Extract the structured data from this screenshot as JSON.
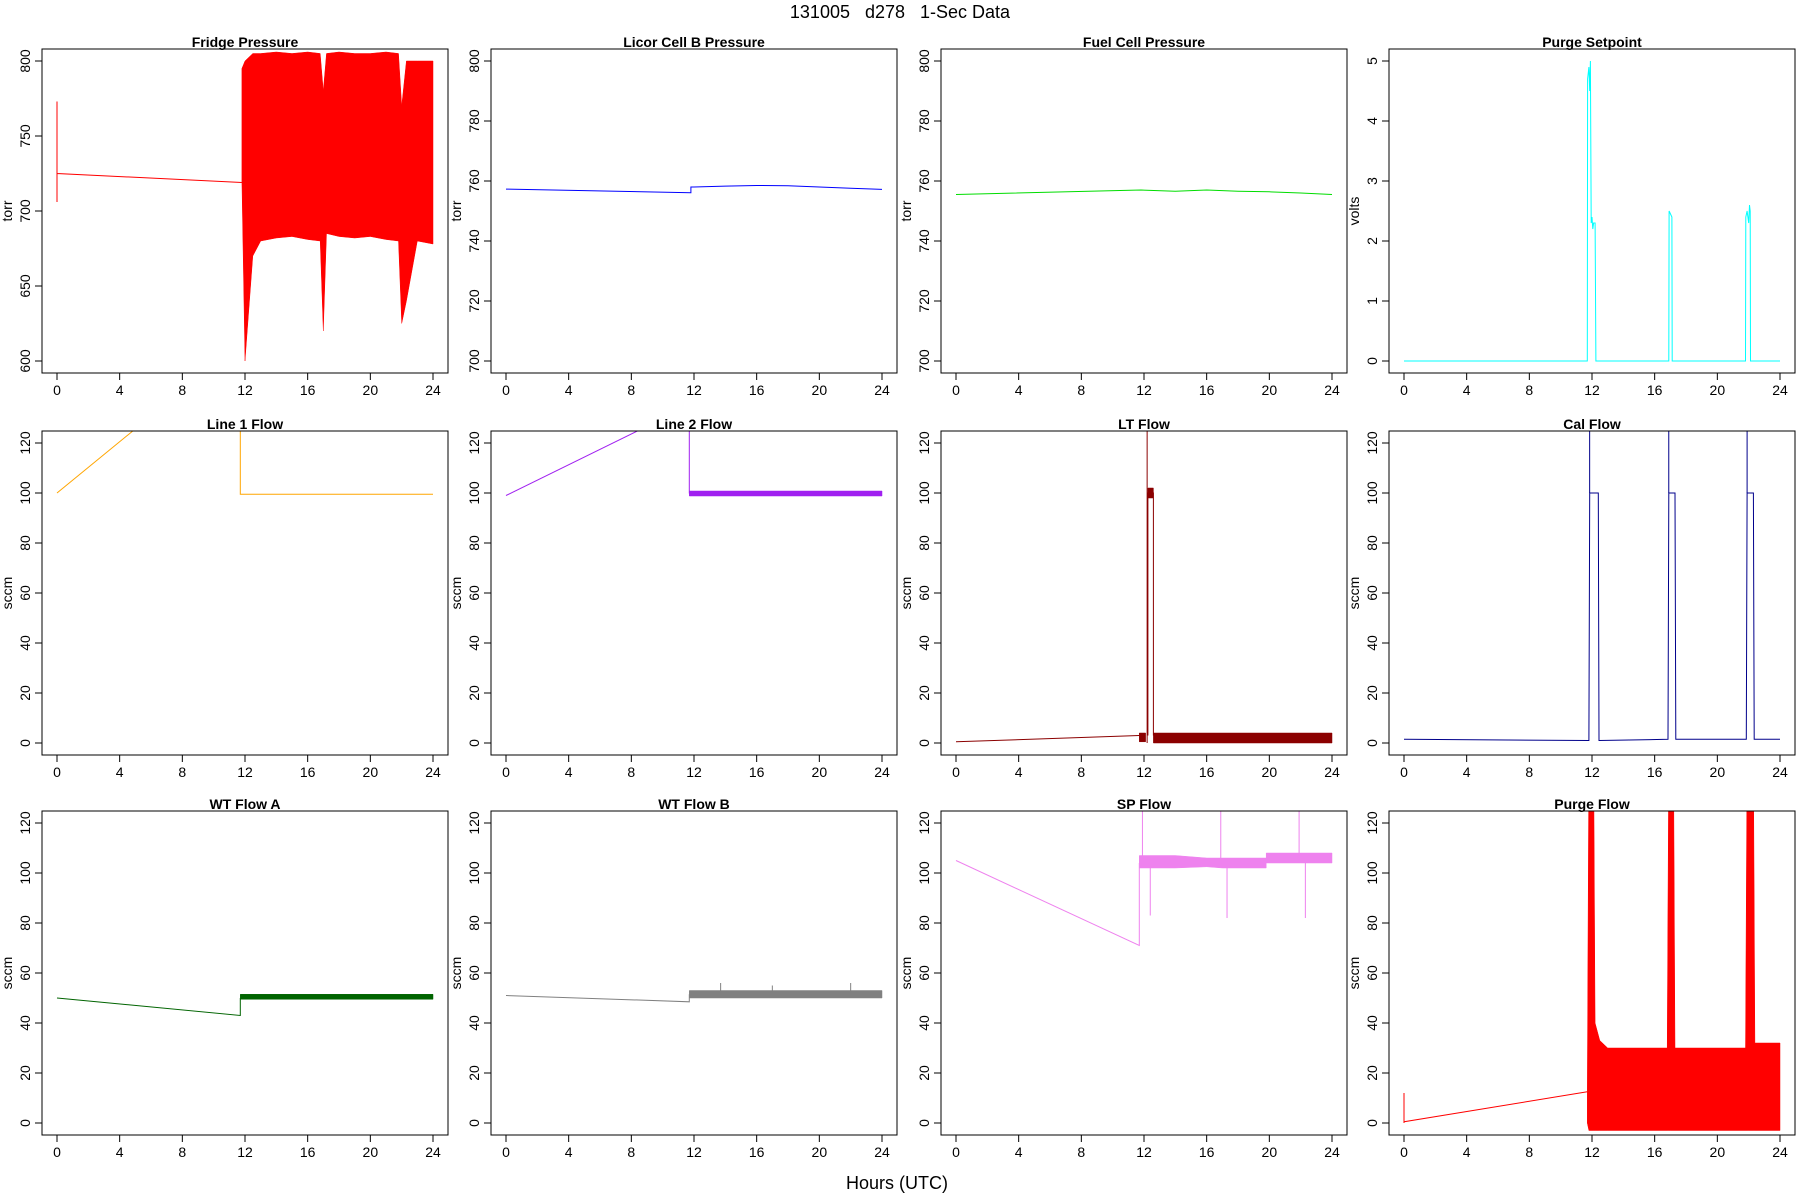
{
  "figure": {
    "title": "131005   d278   1-Sec Data",
    "xlabel": "Hours (UTC)"
  },
  "chart_data": [
    {
      "type": "line",
      "title": "Fridge Pressure",
      "ylabel": "torr",
      "color": "#ff0000",
      "xlim": [
        0,
        24
      ],
      "ylim": [
        600,
        800
      ],
      "xticks": [
        0,
        4,
        8,
        12,
        16,
        20,
        24
      ],
      "yticks": [
        600,
        650,
        700,
        750,
        800
      ],
      "lines": [
        {
          "x": [
            0,
            0,
            0,
            11.8
          ],
          "y": [
            706,
            773,
            725,
            719
          ]
        }
      ],
      "bands": [
        {
          "x": [
            11.8,
            12.0,
            12.5,
            13,
            14,
            15,
            16,
            16.8,
            17.0,
            17.2,
            18,
            19,
            20,
            21,
            21.8,
            22.0,
            22.3,
            23,
            24
          ],
          "lo": [
            720,
            600,
            670,
            680,
            682,
            683,
            681,
            680,
            620,
            685,
            683,
            682,
            683,
            681,
            680,
            625,
            640,
            680,
            678
          ],
          "hi": [
            795,
            800,
            805,
            805,
            806,
            805,
            806,
            805,
            780,
            805,
            806,
            805,
            805,
            806,
            805,
            770,
            800,
            800,
            800
          ]
        }
      ],
      "spikes": []
    },
    {
      "type": "line",
      "title": "Licor Cell B Pressure",
      "ylabel": "torr",
      "color": "#0000ff",
      "xlim": [
        0,
        24
      ],
      "ylim": [
        700,
        800
      ],
      "xticks": [
        0,
        4,
        8,
        12,
        16,
        20,
        24
      ],
      "yticks": [
        700,
        720,
        740,
        760,
        780,
        800
      ],
      "lines": [
        {
          "x": [
            0,
            11.8,
            11.8,
            12,
            14,
            16,
            18,
            20,
            22,
            24
          ],
          "y": [
            757.3,
            756.1,
            758,
            758,
            758.3,
            758.5,
            758.4,
            758,
            757.6,
            757.2
          ]
        }
      ],
      "bands": [],
      "spikes": []
    },
    {
      "type": "line",
      "title": "Fuel Cell Pressure",
      "ylabel": "torr",
      "color": "#00dd00",
      "xlim": [
        0,
        24
      ],
      "ylim": [
        700,
        800
      ],
      "xticks": [
        0,
        4,
        8,
        12,
        16,
        20,
        24
      ],
      "yticks": [
        700,
        720,
        740,
        760,
        780,
        800
      ],
      "lines": [
        {
          "x": [
            0,
            11.8,
            14,
            16,
            18,
            20,
            22,
            24
          ],
          "y": [
            755.5,
            757,
            756.6,
            757,
            756.6,
            756.4,
            756,
            755.5
          ]
        }
      ],
      "bands": [],
      "spikes": []
    },
    {
      "type": "line",
      "title": "Purge Setpoint",
      "ylabel": "volts",
      "color": "#00ffff",
      "xlim": [
        0,
        24
      ],
      "ylim": [
        0,
        5
      ],
      "xticks": [
        0,
        4,
        8,
        12,
        16,
        20,
        24
      ],
      "yticks": [
        0,
        1,
        2,
        3,
        4,
        5
      ],
      "lines": [
        {
          "x": [
            0,
            11.7,
            11.72,
            11.8,
            11.85,
            11.9,
            11.95,
            12.0,
            12.05,
            12.1,
            12.2,
            12.25,
            16.9,
            16.92,
            17.1,
            17.12,
            21.8,
            21.82,
            21.9,
            22.0,
            22.05,
            22.1,
            22.12,
            24
          ],
          "y": [
            0,
            0,
            4.7,
            4.9,
            4.5,
            5.0,
            2.3,
            2.4,
            2.2,
            2.3,
            2.3,
            0,
            0,
            2.5,
            2.4,
            0,
            0,
            2.4,
            2.5,
            2.3,
            2.6,
            2.5,
            0,
            0
          ]
        }
      ],
      "bands": [],
      "spikes": []
    },
    {
      "type": "line",
      "title": "Line 1 Flow",
      "ylabel": "sccm",
      "color": "#ffa500",
      "xlim": [
        0,
        24
      ],
      "ylim": [
        0,
        120
      ],
      "xticks": [
        0,
        4,
        8,
        12,
        16,
        20,
        24
      ],
      "yticks": [
        0,
        20,
        40,
        60,
        80,
        100,
        120
      ],
      "lines": [
        {
          "x": [
            0,
            11.7
          ],
          "y": [
            100,
            160
          ]
        },
        {
          "x": [
            11.7,
            11.7,
            24
          ],
          "y": [
            140,
            99.5,
            99.5
          ]
        }
      ],
      "bands": [],
      "spikes": []
    },
    {
      "type": "line",
      "title": "Line 2 Flow",
      "ylabel": "sccm",
      "color": "#a020f0",
      "xlim": [
        0,
        24
      ],
      "ylim": [
        0,
        120
      ],
      "xticks": [
        0,
        4,
        8,
        12,
        16,
        20,
        24
      ],
      "yticks": [
        0,
        20,
        40,
        60,
        80,
        100,
        120
      ],
      "lines": [
        {
          "x": [
            0,
            11.7
          ],
          "y": [
            99,
            135
          ]
        },
        {
          "x": [
            11.7,
            11.7,
            24
          ],
          "y": [
            135,
            100,
            100
          ]
        }
      ],
      "bands": [
        {
          "x": [
            11.7,
            24
          ],
          "lo": [
            98.8,
            98.8
          ],
          "hi": [
            100.8,
            100.8
          ]
        }
      ],
      "spikes": []
    },
    {
      "type": "line",
      "title": "LT Flow",
      "ylabel": "sccm",
      "color": "#8b0000",
      "xlim": [
        0,
        24
      ],
      "ylim": [
        0,
        120
      ],
      "xticks": [
        0,
        4,
        8,
        12,
        16,
        20,
        24
      ],
      "yticks": [
        0,
        20,
        40,
        60,
        80,
        100,
        120
      ],
      "lines": [
        {
          "x": [
            0,
            11.7
          ],
          "y": [
            0.5,
            3
          ]
        },
        {
          "x": [
            12.25,
            12.25,
            12.6,
            12.6
          ],
          "y": [
            3,
            100,
            100,
            3
          ]
        }
      ],
      "bands": [
        {
          "x": [
            11.7,
            12.1
          ],
          "lo": [
            0.5,
            0.5
          ],
          "hi": [
            4,
            4
          ]
        },
        {
          "x": [
            12.25,
            12.6
          ],
          "lo": [
            98,
            98
          ],
          "hi": [
            102,
            102
          ]
        },
        {
          "x": [
            12.6,
            24
          ],
          "lo": [
            0,
            0
          ],
          "hi": [
            4,
            4
          ]
        }
      ],
      "spikes": [
        {
          "x": 12.2,
          "y0": 0,
          "y1": 150
        }
      ]
    },
    {
      "type": "line",
      "title": "Cal Flow",
      "ylabel": "sccm",
      "color": "#00008b",
      "xlim": [
        0,
        24
      ],
      "ylim": [
        0,
        120
      ],
      "xticks": [
        0,
        4,
        8,
        12,
        16,
        20,
        24
      ],
      "yticks": [
        0,
        20,
        40,
        60,
        80,
        100,
        120
      ],
      "lines": [
        {
          "x": [
            0,
            11.8,
            11.85,
            12.0,
            12.4,
            12.45,
            16.85,
            16.9,
            17.3,
            17.35,
            21.85,
            21.9,
            22.3,
            22.35,
            24
          ],
          "y": [
            1.5,
            1,
            100,
            100,
            100,
            1,
            1.5,
            100,
            100,
            1.5,
            1.5,
            100,
            100,
            1.5,
            1.5
          ]
        }
      ],
      "bands": [],
      "spikes": [
        {
          "x": 11.85,
          "y0": 100,
          "y1": 150
        },
        {
          "x": 16.9,
          "y0": 100,
          "y1": 150
        },
        {
          "x": 21.9,
          "y0": 100,
          "y1": 150
        }
      ]
    },
    {
      "type": "line",
      "title": "WT Flow A",
      "ylabel": "sccm",
      "color": "#006400",
      "xlim": [
        0,
        24
      ],
      "ylim": [
        0,
        120
      ],
      "xticks": [
        0,
        4,
        8,
        12,
        16,
        20,
        24
      ],
      "yticks": [
        0,
        20,
        40,
        60,
        80,
        100,
        120
      ],
      "lines": [
        {
          "x": [
            0,
            11.7,
            11.7
          ],
          "y": [
            50,
            43,
            50
          ]
        }
      ],
      "bands": [
        {
          "x": [
            11.7,
            24
          ],
          "lo": [
            49.5,
            49.5
          ],
          "hi": [
            51.5,
            51.5
          ]
        }
      ],
      "spikes": []
    },
    {
      "type": "line",
      "title": "WT Flow B",
      "ylabel": "sccm",
      "color": "#808080",
      "xlim": [
        0,
        24
      ],
      "ylim": [
        0,
        120
      ],
      "xticks": [
        0,
        4,
        8,
        12,
        16,
        20,
        24
      ],
      "yticks": [
        0,
        20,
        40,
        60,
        80,
        100,
        120
      ],
      "lines": [
        {
          "x": [
            0,
            11.7,
            11.7
          ],
          "y": [
            51,
            48.5,
            51.5
          ]
        }
      ],
      "bands": [
        {
          "x": [
            11.7,
            24
          ],
          "lo": [
            50,
            50
          ],
          "hi": [
            53,
            53
          ]
        }
      ],
      "spikes": [
        {
          "x": 13.7,
          "y0": 52,
          "y1": 56
        },
        {
          "x": 17.0,
          "y0": 52,
          "y1": 55
        },
        {
          "x": 22.0,
          "y0": 52,
          "y1": 56
        }
      ]
    },
    {
      "type": "line",
      "title": "SP Flow",
      "ylabel": "sccm",
      "color": "#ee82ee",
      "xlim": [
        0,
        24
      ],
      "ylim": [
        0,
        120
      ],
      "xticks": [
        0,
        4,
        8,
        12,
        16,
        20,
        24
      ],
      "yticks": [
        0,
        20,
        40,
        60,
        80,
        100,
        120
      ],
      "lines": [
        {
          "x": [
            0,
            11.7,
            11.7
          ],
          "y": [
            105,
            71,
            104
          ]
        }
      ],
      "bands": [
        {
          "x": [
            11.7,
            14,
            16,
            17,
            19.8
          ],
          "lo": [
            102,
            102,
            102.5,
            102,
            102
          ],
          "hi": [
            107,
            107,
            106,
            106,
            106
          ]
        },
        {
          "x": [
            19.8,
            22,
            24
          ],
          "lo": [
            104,
            104,
            104
          ],
          "hi": [
            108,
            108,
            108
          ]
        }
      ],
      "spikes": [
        {
          "x": 11.9,
          "y0": 104,
          "y1": 150
        },
        {
          "x": 12.4,
          "y0": 83,
          "y1": 104
        },
        {
          "x": 16.9,
          "y0": 104,
          "y1": 150
        },
        {
          "x": 17.3,
          "y0": 82,
          "y1": 104
        },
        {
          "x": 21.9,
          "y0": 104,
          "y1": 150
        },
        {
          "x": 22.3,
          "y0": 82,
          "y1": 104
        }
      ]
    },
    {
      "type": "line",
      "title": "Purge Flow",
      "ylabel": "sccm",
      "color": "#ff0000",
      "xlim": [
        0,
        24
      ],
      "ylim": [
        0,
        120
      ],
      "xticks": [
        0,
        4,
        8,
        12,
        16,
        20,
        24
      ],
      "yticks": [
        0,
        20,
        40,
        60,
        80,
        100,
        120
      ],
      "lines": [
        {
          "x": [
            0,
            0,
            0,
            11.7
          ],
          "y": [
            0,
            12,
            0.5,
            12.5
          ]
        }
      ],
      "bands": [
        {
          "x": [
            11.7,
            11.8,
            12.1,
            12.2,
            12.5,
            13,
            16.8,
            16.9,
            17.0,
            17.2,
            17.3,
            21.8,
            21.9,
            22.0,
            22.3,
            22.4,
            24
          ],
          "lo": [
            0,
            -3,
            -3,
            -3,
            -3,
            -3,
            -3,
            -3,
            -3,
            -3,
            -3,
            -3,
            -3,
            -3,
            -3,
            -3,
            -3
          ],
          "hi": [
            12,
            150,
            150,
            40,
            33,
            30,
            30,
            150,
            150,
            150,
            30,
            30,
            150,
            150,
            150,
            32,
            32
          ]
        }
      ],
      "spikes": []
    }
  ]
}
